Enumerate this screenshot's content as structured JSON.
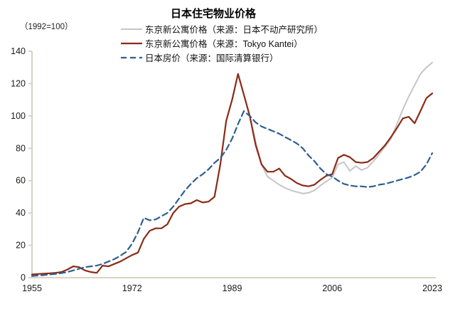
{
  "title": "日本住宅物业价格",
  "unit_label": "（1992=100）",
  "legend": {
    "items": [
      {
        "label": "东京新公寓价格（来源：日本不动产研究所）",
        "color": "#C6C6C6",
        "dash": "",
        "width": 2
      },
      {
        "label": "东京新公寓价格（来源：Tokyo Kantei）",
        "color": "#8B2A17",
        "dash": "",
        "width": 2.2
      },
      {
        "label": "日本房价（来源：国际清算银行）",
        "color": "#2E5E90",
        "dash": "8 5",
        "width": 2.2
      }
    ]
  },
  "chart_data": {
    "type": "line",
    "title": "日本住宅物业价格",
    "ylabel": "（1992=100）",
    "xlim": [
      1955,
      2023
    ],
    "ylim": [
      0,
      140
    ],
    "x_ticks": [
      1955,
      1972,
      1989,
      2006,
      2023
    ],
    "y_ticks": [
      0,
      20,
      40,
      60,
      80,
      100,
      120,
      140
    ],
    "grid": false,
    "legend_position": "top",
    "axis_color": "#D8D2C0",
    "tick_label_color": "#1a1a1a",
    "series": [
      {
        "name": "东京新公寓价格（来源：日本不动产研究所）",
        "color": "#C6C6C6",
        "style": "solid",
        "width": 2,
        "start_year": 1992,
        "values": [
          100,
          84,
          70,
          62.5,
          60,
          57.5,
          55.5,
          54,
          53,
          52,
          52.5,
          54,
          57,
          59.5,
          62,
          70,
          71.5,
          66,
          69,
          66.5,
          68,
          72,
          76.5,
          81,
          86,
          95,
          104,
          112,
          119,
          126,
          130,
          133
        ]
      },
      {
        "name": "东京新公寓价格（来源：Tokyo Kantei）",
        "color": "#8B2A17",
        "style": "solid",
        "width": 2.2,
        "start_year": 1955,
        "values": [
          2,
          2.3,
          2.5,
          2.7,
          3,
          3.5,
          5,
          7,
          6.5,
          4.5,
          3.5,
          3,
          7.5,
          7,
          8.5,
          10,
          12,
          14,
          15.5,
          24,
          29,
          30.5,
          30.5,
          33,
          40,
          44,
          45.5,
          46,
          48,
          46.5,
          47,
          50,
          70,
          97,
          110,
          126,
          113,
          100,
          82,
          70,
          65.5,
          65.5,
          67.5,
          63,
          61,
          58.5,
          57,
          56.5,
          57.5,
          60.5,
          63,
          64,
          74,
          76,
          74.5,
          71.5,
          71,
          71.5,
          74,
          78,
          82,
          87,
          92.5,
          98.5,
          99.5,
          95.5,
          103,
          111,
          114
        ]
      },
      {
        "name": "日本房价（来源：国际清算银行）",
        "color": "#2E5E90",
        "style": "dashed",
        "dash": "8 5",
        "width": 2.2,
        "start_year": 1955,
        "values": [
          1,
          1.3,
          1.6,
          2,
          2.3,
          2.8,
          3.5,
          4.5,
          5.5,
          6.5,
          7,
          7.5,
          8.5,
          10,
          11.5,
          13.5,
          16,
          21,
          28,
          37,
          35.5,
          36,
          38,
          40,
          44,
          49,
          54,
          58,
          61.5,
          64,
          67,
          71,
          74,
          79,
          86,
          95,
          103,
          100,
          96,
          93.5,
          92,
          90.5,
          89,
          87,
          85,
          83,
          80,
          75.5,
          72,
          67.5,
          64,
          62.5,
          60,
          58,
          57,
          56.5,
          56.5,
          56,
          56.5,
          57.5,
          58,
          59,
          60,
          61,
          62,
          63.5,
          65.5,
          70,
          77
        ]
      }
    ]
  }
}
